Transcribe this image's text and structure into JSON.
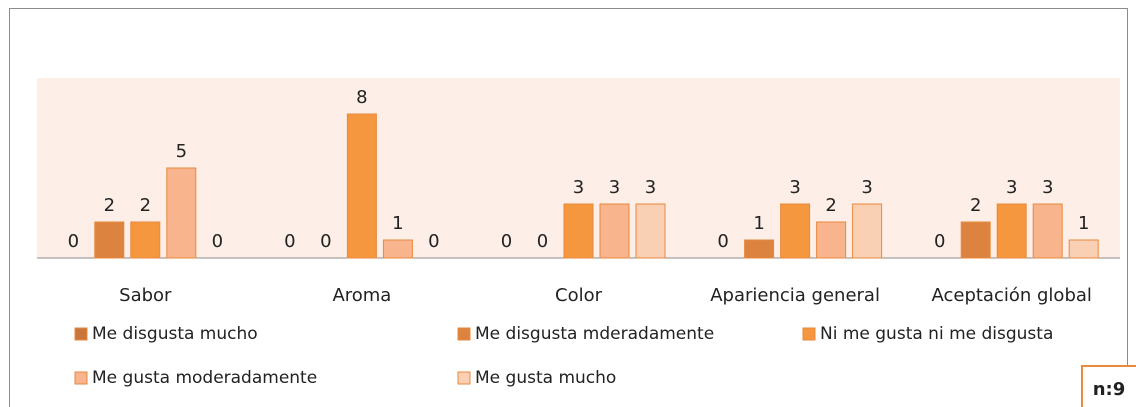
{
  "chart_data": {
    "type": "bar",
    "categories": [
      "Sabor",
      "Aroma",
      "Color",
      "Apariencia general",
      "Aceptación global"
    ],
    "series": [
      {
        "name": "Me disgusta mucho",
        "color": "#c8763b",
        "values": [
          0,
          0,
          0,
          0,
          0
        ]
      },
      {
        "name": "Me disgusta mderadamente",
        "color": "#dc843f",
        "values": [
          2,
          0,
          0,
          1,
          2
        ]
      },
      {
        "name": "Ni me gusta ni me disgusta",
        "color": "#f5973f",
        "values": [
          2,
          8,
          3,
          3,
          3
        ]
      },
      {
        "name": "Me gusta moderadamente",
        "color": "#f8b48c",
        "values": [
          5,
          1,
          3,
          2,
          3
        ]
      },
      {
        "name": "Me gusta mucho",
        "color": "#fad0b4",
        "values": [
          0,
          0,
          3,
          3,
          1
        ]
      }
    ],
    "ylim": [
      0,
      10
    ],
    "note": "n:9"
  }
}
